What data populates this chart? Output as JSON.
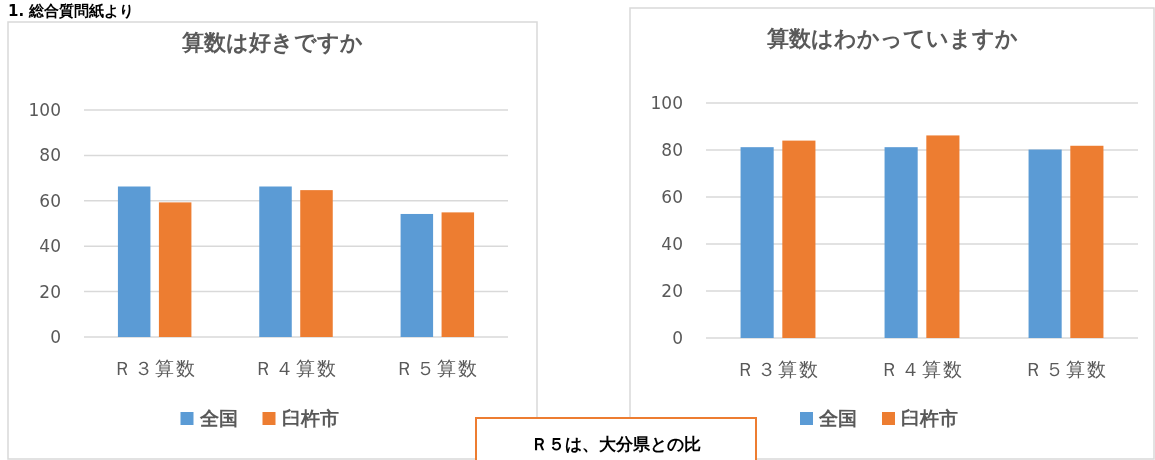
{
  "chart_data": [
    {
      "type": "bar",
      "title": "算数は好きですか",
      "categories": [
        "Ｒ３算数",
        "Ｒ４算数",
        "Ｒ５算数"
      ],
      "series": [
        {
          "name": "全国",
          "color": "#5b9bd5",
          "values": [
            66.3,
            66.3,
            54.2
          ]
        },
        {
          "name": "臼杵市",
          "color": "#ed7d31",
          "values": [
            59.3,
            64.7,
            54.9
          ]
        }
      ],
      "ylim": [
        0,
        100
      ],
      "yticks": [
        0,
        20,
        40,
        60,
        80,
        100
      ],
      "grid": "y",
      "legend": "bottom",
      "annotations": [
        "1. 総合質問紙より",
        "Ｒ５は、大分県との比"
      ]
    },
    {
      "type": "bar",
      "title": "算数はわかっていますか",
      "categories": [
        "Ｒ３算数",
        "Ｒ４算数",
        "Ｒ５算数"
      ],
      "series": [
        {
          "name": "全国",
          "color": "#5b9bd5",
          "values": [
            81.2,
            81.2,
            80.2
          ]
        },
        {
          "name": "臼杵市",
          "color": "#ed7d31",
          "values": [
            84.0,
            86.2,
            81.8
          ]
        }
      ],
      "ylim": [
        0,
        100
      ],
      "yticks": [
        0,
        20,
        40,
        60,
        80,
        100
      ],
      "grid": "y",
      "legend": "bottom"
    }
  ]
}
